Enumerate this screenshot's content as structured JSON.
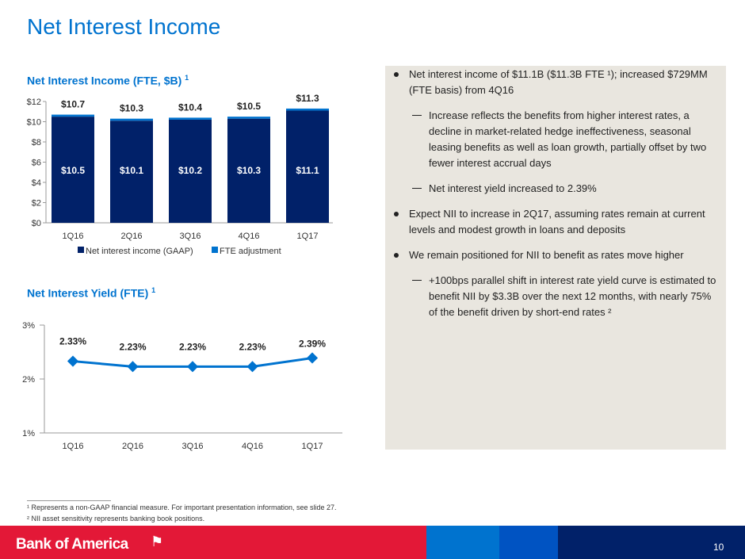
{
  "title": "Net Interest Income",
  "chart_data": [
    {
      "type": "bar",
      "stacked": true,
      "title": "Net Interest Income (FTE, $B)",
      "title_sup": "1",
      "categories": [
        "1Q16",
        "2Q16",
        "3Q16",
        "4Q16",
        "1Q17"
      ],
      "series": [
        {
          "name": "Net interest income (GAAP)",
          "values": [
            10.5,
            10.1,
            10.2,
            10.3,
            11.1
          ],
          "labels": [
            "$10.5",
            "$10.1",
            "$10.2",
            "$10.3",
            "$11.1"
          ],
          "color": "#012169"
        },
        {
          "name": "FTE adjustment",
          "values": [
            0.2,
            0.2,
            0.2,
            0.2,
            0.2
          ],
          "color": "#0073CF"
        }
      ],
      "totals": [
        "$10.7",
        "$10.3",
        "$10.4",
        "$10.5",
        "$11.3"
      ],
      "ylim": [
        0,
        12
      ],
      "yticks": [
        "$0",
        "$2",
        "$4",
        "$6",
        "$8",
        "$10",
        "$12"
      ],
      "legend": "bottom"
    },
    {
      "type": "line",
      "title": "Net Interest Yield (FTE)",
      "title_sup": "1",
      "categories": [
        "1Q16",
        "2Q16",
        "3Q16",
        "4Q16",
        "1Q17"
      ],
      "values": [
        2.33,
        2.23,
        2.23,
        2.23,
        2.39
      ],
      "labels": [
        "2.33%",
        "2.23%",
        "2.23%",
        "2.23%",
        "2.39%"
      ],
      "ylim": [
        1,
        3
      ],
      "yticks": [
        "1%",
        "2%",
        "3%"
      ],
      "color": "#0073CF"
    }
  ],
  "bullets": [
    {
      "level": 1,
      "text": "Net interest income of $11.1B ($11.3B FTE ¹); increased $729MM (FTE basis) from 4Q16"
    },
    {
      "level": 2,
      "text": "Increase reflects the benefits from higher interest rates, a decline in market-related hedge ineffectiveness, seasonal leasing benefits as well as loan growth, partially offset by two fewer interest accrual days"
    },
    {
      "level": 2,
      "text": "Net interest yield increased to 2.39%"
    },
    {
      "level": 1,
      "text": "Expect NII to increase in 2Q17, assuming rates remain at current levels and modest growth in loans and deposits"
    },
    {
      "level": 1,
      "text": "We remain positioned for NII to benefit as rates move higher"
    },
    {
      "level": 2,
      "text": "+100bps parallel shift in interest rate yield curve is estimated to benefit NII by $3.3B over the next 12 months, with nearly 75% of the benefit driven by short-end rates ²"
    }
  ],
  "footnotes": [
    "¹ Represents a non-GAAP financial measure. For important presentation information, see slide 27.",
    "² NII asset sensitivity represents banking book positions."
  ],
  "brand": "Bank of America",
  "page": "10"
}
